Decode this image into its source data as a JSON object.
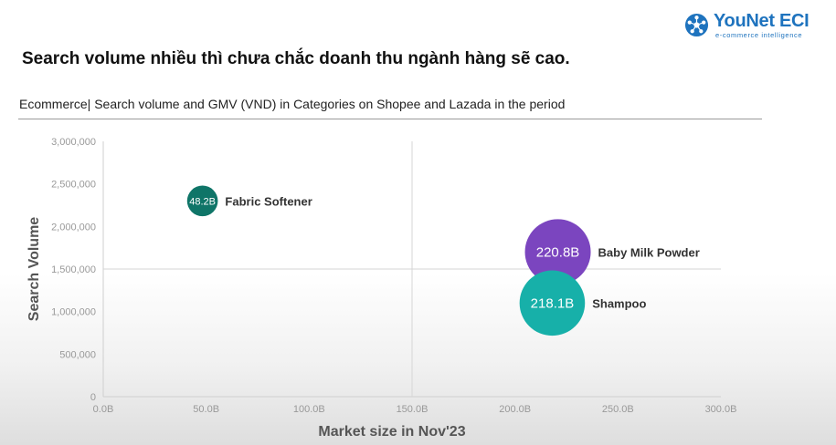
{
  "brand": {
    "logo_name": "YouNet ECI",
    "tagline": "e-commerce intelligence",
    "color": "#1e73be"
  },
  "headline": "Search volume nhiều thì chưa chắc doanh thu ngành hàng sẽ cao.",
  "subtitle": "Ecommerce| Search volume  and GMV (VND) in Categories on Shopee and Lazada in the period",
  "chart_data": {
    "type": "scatter",
    "xlabel": "Market size in Nov'23",
    "ylabel": "Search Volume",
    "xlim": [
      0,
      300
    ],
    "ylim": [
      0,
      3000000
    ],
    "x_ticks": [
      "0.0B",
      "50.0B",
      "100.0B",
      "150.0B",
      "200.0B",
      "250.0B",
      "300.0B"
    ],
    "y_ticks": [
      "0",
      "500,000",
      "1,000,000",
      "1,500,000",
      "2,000,000",
      "2,500,000",
      "3,000,000"
    ],
    "quadrant_lines": {
      "x": 150,
      "y": 1500000
    },
    "grid": false,
    "points": [
      {
        "name": "Fabric Softener",
        "x": 48.2,
        "y": 2300000,
        "label": "48.2B",
        "color": "#0f7568"
      },
      {
        "name": "Baby Milk Powder",
        "x": 220.8,
        "y": 1700000,
        "label": "220.8B",
        "color": "#7b45bf"
      },
      {
        "name": "Shampoo",
        "x": 218.1,
        "y": 1100000,
        "label": "218.1B",
        "color": "#17b0a9"
      }
    ]
  }
}
